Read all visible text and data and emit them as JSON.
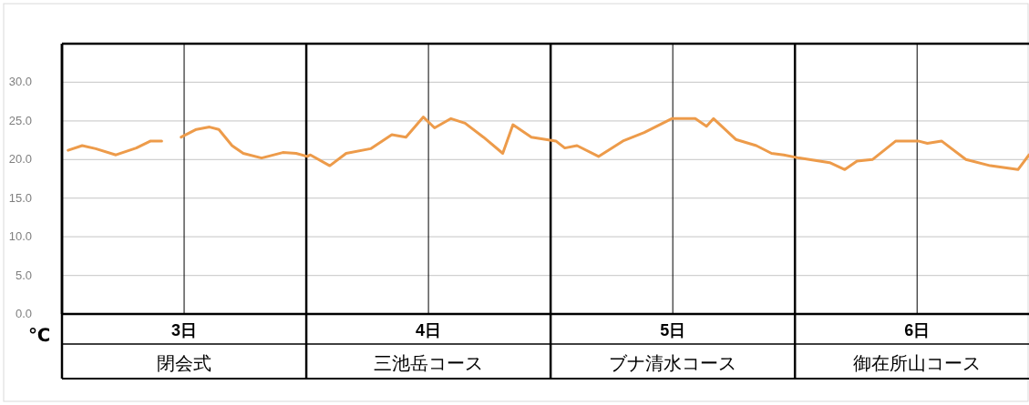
{
  "chart_data": {
    "type": "line",
    "ylabel": "℃",
    "x": [
      2.525,
      2.583,
      2.638,
      2.721,
      2.804,
      2.863,
      2.908,
      2.95,
      2.988,
      3.05,
      3.104,
      3.142,
      3.196,
      3.242,
      3.317,
      3.404,
      3.458,
      3.504,
      3.517,
      3.596,
      3.663,
      3.763,
      3.85,
      3.908,
      3.979,
      4.025,
      4.092,
      4.15,
      4.225,
      4.304,
      4.346,
      4.421,
      4.521,
      4.558,
      4.608,
      4.696,
      4.796,
      4.883,
      4.996,
      5.092,
      5.138,
      5.167,
      5.258,
      5.342,
      5.404,
      5.454,
      5.517,
      5.642,
      5.704,
      5.754,
      5.817,
      5.913,
      6.004,
      6.042,
      6.1,
      6.2,
      6.3,
      6.413,
      6.458
    ],
    "series": [
      {
        "color": "#ed9b4a",
        "values": [
          21.2,
          21.8,
          21.4,
          20.6,
          21.5,
          22.4,
          22.4,
          null,
          22.9,
          23.9,
          24.2,
          23.9,
          21.8,
          20.8,
          20.2,
          20.9,
          20.8,
          20.4,
          20.6,
          19.2,
          20.8,
          21.4,
          23.2,
          22.9,
          25.5,
          24.1,
          25.3,
          24.7,
          22.9,
          20.8,
          24.5,
          22.9,
          22.4,
          21.5,
          21.8,
          20.4,
          22.4,
          23.5,
          25.3,
          25.3,
          24.3,
          25.3,
          22.6,
          21.8,
          20.8,
          20.6,
          20.2,
          19.6,
          18.7,
          19.8,
          20.0,
          22.4,
          22.4,
          22.1,
          22.4,
          20.0,
          19.2,
          18.7,
          20.6
        ]
      }
    ],
    "xlim": [
      2.5,
      6.458
    ],
    "xticks": [
      {
        "value": 2.5,
        "label": null
      },
      {
        "value": 3,
        "label": "3日"
      },
      {
        "value": 3.5,
        "label": null
      },
      {
        "value": 4,
        "label": "4日"
      },
      {
        "value": 4.5,
        "label": null
      },
      {
        "value": 5,
        "label": "5日"
      },
      {
        "value": 5.5,
        "label": null
      },
      {
        "value": 6,
        "label": "6日"
      }
    ],
    "ylim": [
      0,
      35
    ],
    "yticks": [
      {
        "value": 0,
        "label": "0.0"
      },
      {
        "value": 5,
        "label": "5.0"
      },
      {
        "value": 10,
        "label": "10.0"
      },
      {
        "value": 15,
        "label": "15.0"
      },
      {
        "value": 20,
        "label": "20.0"
      },
      {
        "value": 25,
        "label": "25.0"
      },
      {
        "value": 30,
        "label": "30.0"
      }
    ],
    "grid": true,
    "annotations": [
      "閉会式",
      "三池岳コース",
      "ブナ清水コース",
      "御在所山コース"
    ]
  }
}
